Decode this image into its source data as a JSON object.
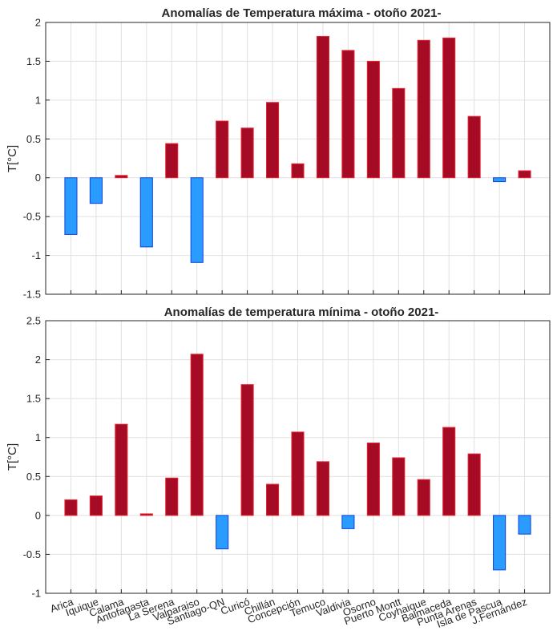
{
  "colors": {
    "positive_fill": "#a50b24",
    "positive_edge": "#e8242f",
    "negative_fill": "#2b9cff",
    "negative_edge": "#1040e0",
    "grid": "#e0e0e0",
    "axis": "#262626"
  },
  "categories": [
    "Arica",
    "Iquique",
    "Calama",
    "Antofagasta",
    "La Serena",
    "Valparaiso",
    "Santiago-QN",
    "Curicó",
    "Chillán",
    "Concepción",
    "Temuco",
    "Valdivia",
    "Osorno",
    "Puerto Montt",
    "Coyhaique",
    "Balmaceda",
    "Punta Arenas",
    "Isla de Pascua",
    "J.Fernández"
  ],
  "chart_data": [
    {
      "type": "bar",
      "title": "Anomalías de Temperatura máxima - otoño 2021-",
      "ylabel": "T[°C]",
      "xlabel": "",
      "ylim": [
        -1.5,
        2
      ],
      "yticks": [
        -1.5,
        -1,
        -0.5,
        0,
        0.5,
        1,
        1.5,
        2
      ],
      "ytick_labels": [
        "-1.5",
        "-1",
        "-0.5",
        "0",
        "0.5",
        "1",
        "1.5",
        "2"
      ],
      "grid": true,
      "values": [
        -0.73,
        -0.33,
        0.03,
        -0.89,
        0.44,
        -1.09,
        0.73,
        0.64,
        0.97,
        0.18,
        1.82,
        1.64,
        1.5,
        1.15,
        1.77,
        1.8,
        0.79,
        -0.05,
        0.09
      ]
    },
    {
      "type": "bar",
      "title": "Anomalías de temperatura mínima - otoño 2021-",
      "ylabel": "T[°C]",
      "xlabel": "",
      "ylim": [
        -1,
        2.5
      ],
      "yticks": [
        -1,
        -0.5,
        0,
        0.5,
        1,
        1.5,
        2,
        2.5
      ],
      "ytick_labels": [
        "-1",
        "-0.5",
        "0",
        "0.5",
        "1",
        "1.5",
        "2",
        "2.5"
      ],
      "grid": true,
      "values": [
        0.2,
        0.25,
        1.17,
        0.02,
        0.48,
        2.07,
        -0.43,
        1.68,
        0.4,
        1.07,
        0.69,
        -0.17,
        0.93,
        0.74,
        0.46,
        1.13,
        0.79,
        -0.7,
        -0.24
      ]
    }
  ]
}
